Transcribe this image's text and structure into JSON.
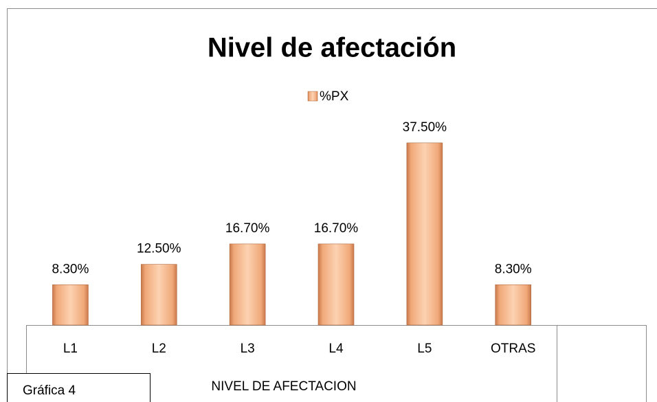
{
  "chart_data": {
    "type": "bar",
    "title": "Nivel de afectación",
    "legend": "%PX",
    "categories": [
      "L1",
      "L2",
      "L3",
      "L4",
      "L5",
      "OTRAS"
    ],
    "values": [
      8.3,
      12.5,
      16.7,
      16.7,
      37.5,
      8.3
    ],
    "value_labels": [
      "8.30%",
      "12.50%",
      "16.70%",
      "16.70%",
      "37.50%",
      "8.30%"
    ],
    "color": "#f0a878",
    "xlabel": "NIVEL DE AFECTACION",
    "annotation": "Gráfica 4"
  }
}
